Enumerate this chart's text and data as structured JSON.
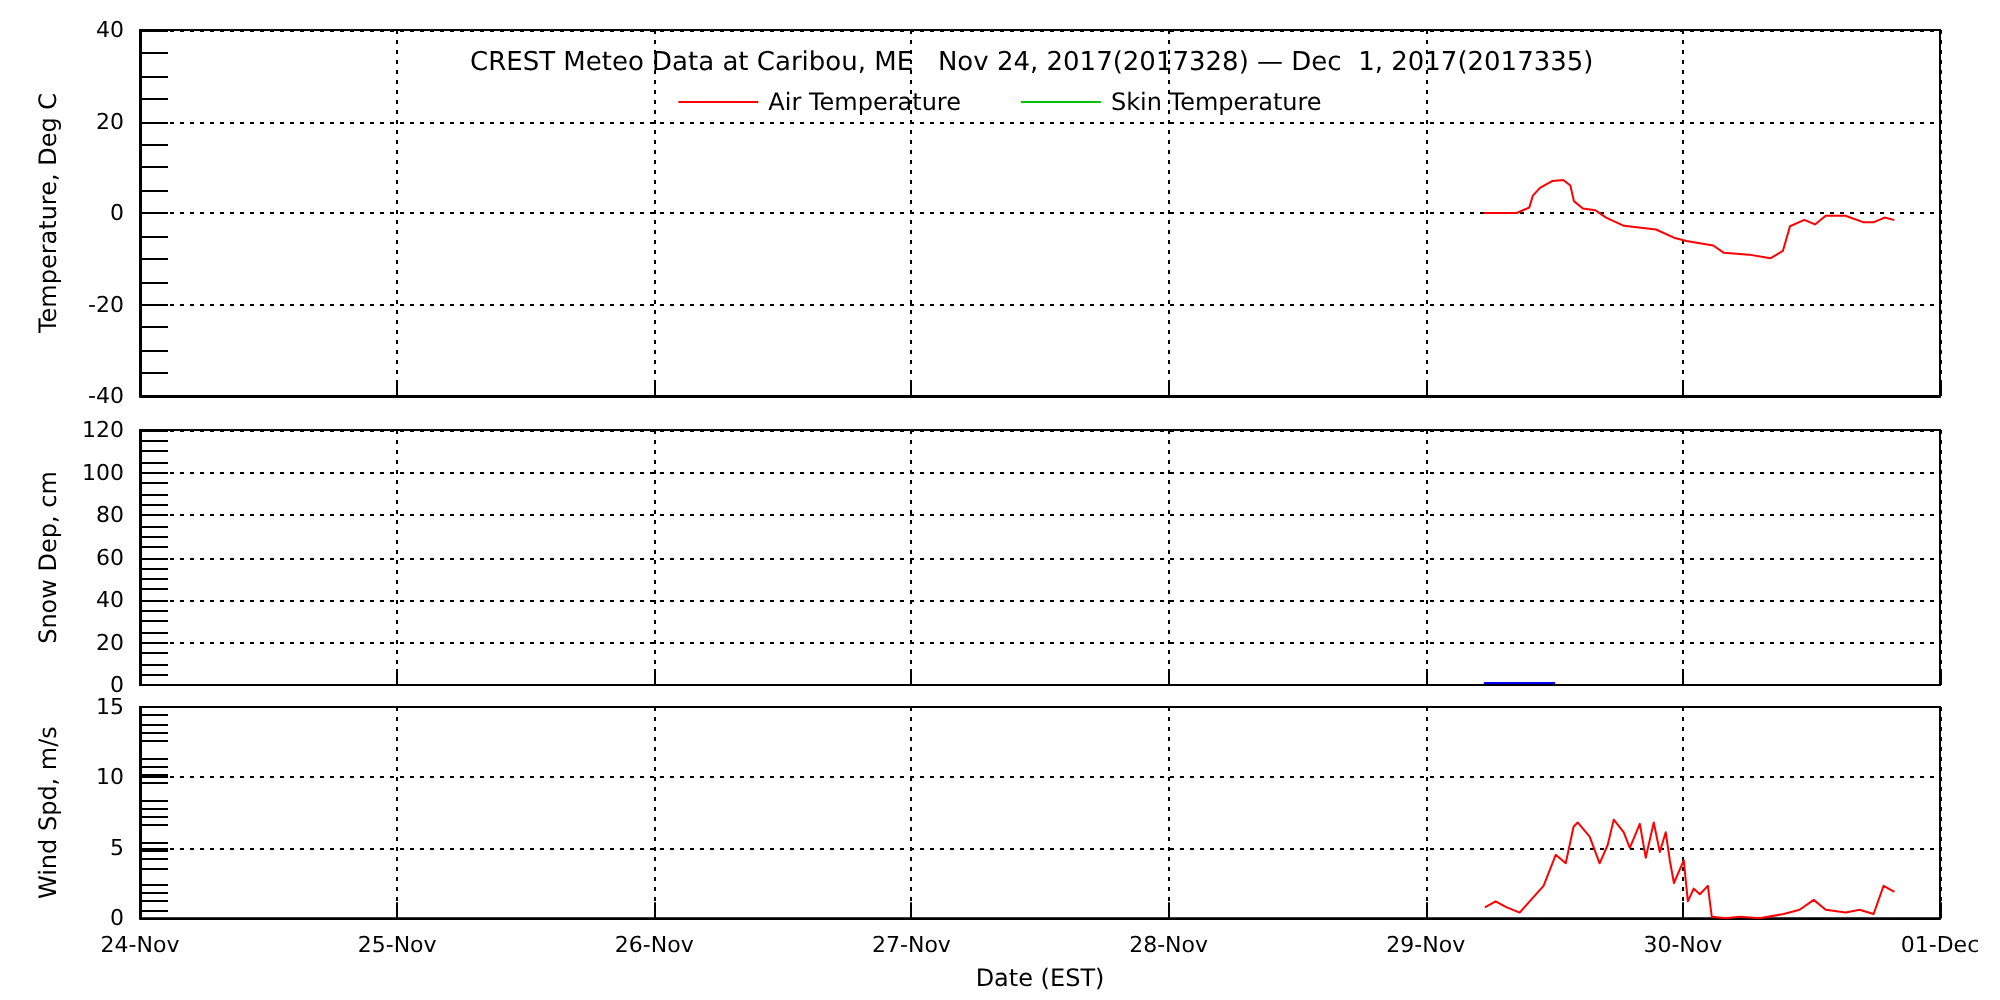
{
  "chart_data": [
    {
      "type": "line",
      "title": "CREST Meteo Data at Caribou, ME   Nov 24, 2017(2017328) — Dec  1, 2017(2017335)",
      "ylabel": "Temperature, Deg C",
      "xlim": [
        "2017-11-24",
        "2017-12-01"
      ],
      "xticks": [
        {
          "value": "2017-11-24",
          "label": null
        },
        {
          "value": "2017-11-25",
          "label": null
        },
        {
          "value": "2017-11-26",
          "label": null
        },
        {
          "value": "2017-11-27",
          "label": null
        },
        {
          "value": "2017-11-28",
          "label": null
        },
        {
          "value": "2017-11-29",
          "label": null
        },
        {
          "value": "2017-11-30",
          "label": null
        },
        {
          "value": "2017-12-01",
          "label": null
        }
      ],
      "ylim": [
        -40,
        40
      ],
      "yticks": [
        -40,
        -20,
        0,
        20,
        40
      ],
      "tick_labels": "y",
      "grid": true,
      "legend": "top",
      "marker": "none",
      "line_style": "solid",
      "series": [
        {
          "name": "Air Temperature",
          "color": "#ff0000",
          "x": [
            "2017-11-29T05:30",
            "2017-11-29T08:30",
            "2017-11-29T09:40",
            "2017-11-29T10:00",
            "2017-11-29T10:40",
            "2017-11-29T11:50",
            "2017-11-29T12:50",
            "2017-11-29T13:30",
            "2017-11-29T13:50",
            "2017-11-29T14:40",
            "2017-11-29T15:50",
            "2017-11-29T16:50",
            "2017-11-29T18:30",
            "2017-11-29T21:30",
            "2017-11-29T23:10",
            "2017-11-30T00:20",
            "2017-11-30T02:50",
            "2017-11-30T03:50",
            "2017-11-30T06:10",
            "2017-11-30T08:10",
            "2017-11-30T09:20",
            "2017-11-30T10:00",
            "2017-11-30T11:20",
            "2017-11-30T12:20",
            "2017-11-30T13:20",
            "2017-11-30T15:10",
            "2017-11-30T16:50",
            "2017-11-30T17:50",
            "2017-11-30T18:50",
            "2017-11-30T19:40"
          ],
          "values": [
            0,
            0,
            1.2,
            3.8,
            5.5,
            7,
            7.2,
            6,
            2.6,
            1,
            0.6,
            -1,
            -2.8,
            -3.6,
            -5.4,
            -6.1,
            -7.1,
            -8.7,
            -9.1,
            -9.9,
            -8.3,
            -2.9,
            -1.5,
            -2.5,
            -0.6,
            -0.6,
            -2,
            -2,
            -1,
            -1.5
          ]
        },
        {
          "name": "Skin Temperature",
          "color": "#00c000"
        }
      ]
    },
    {
      "type": "line",
      "ylabel": "Snow Dep, cm",
      "xlim": [
        "2017-11-24",
        "2017-12-01"
      ],
      "xticks": [
        {
          "value": "2017-11-24",
          "label": null
        },
        {
          "value": "2017-11-25",
          "label": null
        },
        {
          "value": "2017-11-26",
          "label": null
        },
        {
          "value": "2017-11-27",
          "label": null
        },
        {
          "value": "2017-11-28",
          "label": null
        },
        {
          "value": "2017-11-29",
          "label": null
        },
        {
          "value": "2017-11-30",
          "label": null
        },
        {
          "value": "2017-12-01",
          "label": null
        }
      ],
      "ylim": [
        0,
        120
      ],
      "yticks": [
        0,
        20,
        40,
        60,
        80,
        100,
        120
      ],
      "tick_labels": "y",
      "grid": true,
      "marker": "none",
      "line_style": "solid",
      "series": [
        {
          "color": "#0000ff",
          "x": [
            "2017-11-29T05:30",
            "2017-11-29T07:00",
            "2017-11-29T08:30",
            "2017-11-29T10:00",
            "2017-11-29T11:30",
            "2017-11-29T12:00"
          ],
          "values": [
            1,
            1,
            1,
            1,
            1,
            1
          ]
        }
      ]
    },
    {
      "type": "line",
      "ylabel": "Wind Spd, m/s",
      "xlabel": "Date (EST)",
      "xlim": [
        "2017-11-24",
        "2017-12-01"
      ],
      "xticks": [
        {
          "value": "2017-11-24",
          "label": "24-Nov"
        },
        {
          "value": "2017-11-25",
          "label": "25-Nov"
        },
        {
          "value": "2017-11-26",
          "label": "26-Nov"
        },
        {
          "value": "2017-11-27",
          "label": "27-Nov"
        },
        {
          "value": "2017-11-28",
          "label": "28-Nov"
        },
        {
          "value": "2017-11-29",
          "label": "29-Nov"
        },
        {
          "value": "2017-11-30",
          "label": "30-Nov"
        },
        {
          "value": "2017-12-01",
          "label": "01-Dec"
        }
      ],
      "ylim": [
        0,
        15
      ],
      "yticks": [
        0,
        5,
        10,
        15
      ],
      "grid": true,
      "marker": "none",
      "line_style": "solid",
      "series": [
        {
          "color": "#ff0000",
          "x": [
            "2017-11-29T05:36",
            "2017-11-29T06:32",
            "2017-11-29T07:28",
            "2017-11-29T08:46",
            "2017-11-29T09:42",
            "2017-11-29T11:00",
            "2017-11-29T12:08",
            "2017-11-29T13:04",
            "2017-11-29T13:48",
            "2017-11-29T14:11",
            "2017-11-29T15:18",
            "2017-11-29T16:14",
            "2017-11-29T16:59",
            "2017-11-29T17:33",
            "2017-11-29T18:29",
            "2017-11-29T19:03",
            "2017-11-29T19:59",
            "2017-11-29T20:32",
            "2017-11-29T21:17",
            "2017-11-29T21:51",
            "2017-11-29T22:24",
            "2017-11-29T22:47",
            "2017-11-29T23:10",
            "2017-11-30T00:05",
            "2017-11-30T00:28",
            "2017-11-30T01:01",
            "2017-11-30T01:35",
            "2017-11-30T02:20",
            "2017-11-30T02:42",
            "2017-11-30T04:00",
            "2017-11-30T05:18",
            "2017-11-30T07:10",
            "2017-11-30T09:25",
            "2017-11-30T10:54",
            "2017-11-30T12:13",
            "2017-11-30T13:20",
            "2017-11-30T15:12",
            "2017-11-30T16:30",
            "2017-11-30T17:48",
            "2017-11-30T18:44",
            "2017-11-30T19:40"
          ],
          "values": [
            0.8,
            1.2,
            0.8,
            0.4,
            1.2,
            2.3,
            4.5,
            3.9,
            6.5,
            6.8,
            5.8,
            3.9,
            5.2,
            7,
            6.1,
            5,
            6.7,
            4.3,
            6.8,
            4.7,
            6.1,
            4.1,
            2.5,
            4.1,
            1.2,
            2.1,
            1.7,
            2.3,
            0.1,
            0,
            0.1,
            0,
            0.3,
            0.6,
            1.3,
            0.6,
            0.4,
            0.6,
            0.3,
            2.3,
            1.9
          ]
        }
      ]
    }
  ]
}
